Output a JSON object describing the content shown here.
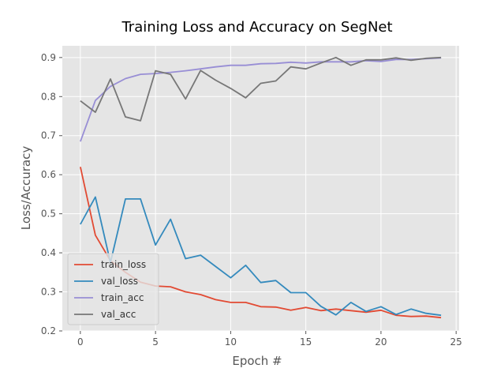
{
  "chart_data": {
    "type": "line",
    "title": "Training Loss and Accuracy on SegNet",
    "xlabel": "Epoch #",
    "ylabel": "Loss/Accuracy",
    "xlim": [
      -1.2,
      25.2
    ],
    "ylim": [
      0.2,
      0.93
    ],
    "xticks": [
      "0",
      "5",
      "10",
      "15",
      "20",
      "25"
    ],
    "yticks": [
      "0.2",
      "0.3",
      "0.4",
      "0.5",
      "0.6",
      "0.7",
      "0.8",
      "0.9"
    ],
    "grid": true,
    "legend_position": "lower-left",
    "x": [
      0,
      1,
      2,
      3,
      4,
      5,
      6,
      7,
      8,
      9,
      10,
      11,
      12,
      13,
      14,
      15,
      16,
      17,
      18,
      19,
      20,
      21,
      22,
      23,
      24
    ],
    "series": [
      {
        "name": "train_loss",
        "color": "#E24A33",
        "values": [
          0.62,
          0.445,
          0.38,
          0.35,
          0.325,
          0.315,
          0.313,
          0.3,
          0.293,
          0.28,
          0.273,
          0.273,
          0.262,
          0.261,
          0.253,
          0.26,
          0.252,
          0.256,
          0.252,
          0.248,
          0.253,
          0.24,
          0.237,
          0.238,
          0.234
        ]
      },
      {
        "name": "val_loss",
        "color": "#348ABD",
        "values": [
          0.473,
          0.543,
          0.375,
          0.538,
          0.538,
          0.42,
          0.486,
          0.385,
          0.394,
          0.365,
          0.336,
          0.368,
          0.324,
          0.329,
          0.298,
          0.298,
          0.263,
          0.241,
          0.273,
          0.25,
          0.262,
          0.242,
          0.256,
          0.245,
          0.24
        ]
      },
      {
        "name": "train_acc",
        "color": "#988ED5",
        "values": [
          0.685,
          0.79,
          0.826,
          0.846,
          0.857,
          0.859,
          0.862,
          0.866,
          0.871,
          0.876,
          0.88,
          0.88,
          0.884,
          0.885,
          0.888,
          0.886,
          0.889,
          0.889,
          0.889,
          0.892,
          0.89,
          0.895,
          0.895,
          0.897,
          0.899
        ]
      },
      {
        "name": "val_acc",
        "color": "#777777",
        "values": [
          0.789,
          0.76,
          0.845,
          0.748,
          0.738,
          0.866,
          0.857,
          0.794,
          0.867,
          0.842,
          0.821,
          0.797,
          0.834,
          0.84,
          0.876,
          0.871,
          0.886,
          0.9,
          0.88,
          0.894,
          0.894,
          0.899,
          0.893,
          0.898,
          0.9
        ]
      }
    ]
  }
}
